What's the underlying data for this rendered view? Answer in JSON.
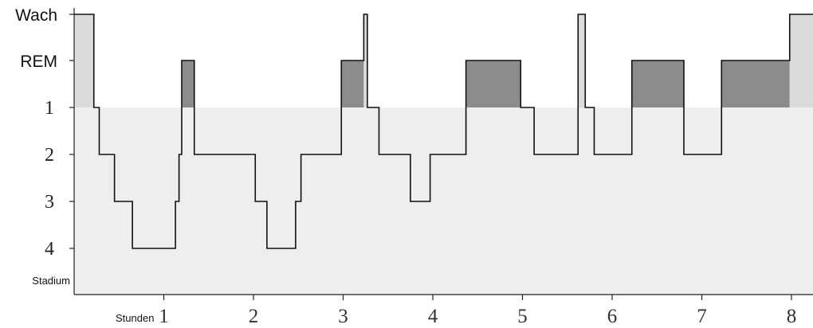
{
  "chart_data": {
    "type": "line",
    "xlabel": "Stunden",
    "ylabel": "Stadium",
    "x_ticks": [
      "1",
      "2",
      "3",
      "4",
      "5",
      "6",
      "7",
      "8"
    ],
    "y_categories": [
      "Wach",
      "REM",
      "1",
      "2",
      "3",
      "4"
    ],
    "xlim": [
      0,
      8.2
    ],
    "colors": {
      "line": "#111111",
      "sleep_fill": "#eeeeee",
      "wake_fill": "#dcdcdc",
      "rem_fill": "#8c8c8c"
    },
    "series": [
      {
        "points": [
          {
            "x": 0.0,
            "stage": "Wach"
          },
          {
            "x": 0.22,
            "stage": "1"
          },
          {
            "x": 0.28,
            "stage": "2"
          },
          {
            "x": 0.45,
            "stage": "3"
          },
          {
            "x": 0.65,
            "stage": "4"
          },
          {
            "x": 1.13,
            "stage": "3"
          },
          {
            "x": 1.17,
            "stage": "2"
          },
          {
            "x": 1.2,
            "stage": "REM"
          },
          {
            "x": 1.34,
            "stage": "2"
          },
          {
            "x": 2.02,
            "stage": "3"
          },
          {
            "x": 2.15,
            "stage": "4"
          },
          {
            "x": 2.47,
            "stage": "3"
          },
          {
            "x": 2.53,
            "stage": "2"
          },
          {
            "x": 2.98,
            "stage": "REM"
          },
          {
            "x": 3.23,
            "stage": "Wach"
          },
          {
            "x": 3.27,
            "stage": "1"
          },
          {
            "x": 3.4,
            "stage": "2"
          },
          {
            "x": 3.75,
            "stage": "3"
          },
          {
            "x": 3.97,
            "stage": "2"
          },
          {
            "x": 4.37,
            "stage": "REM"
          },
          {
            "x": 4.98,
            "stage": "1"
          },
          {
            "x": 5.13,
            "stage": "2"
          },
          {
            "x": 5.62,
            "stage": "Wach"
          },
          {
            "x": 5.7,
            "stage": "1"
          },
          {
            "x": 5.8,
            "stage": "2"
          },
          {
            "x": 6.22,
            "stage": "REM"
          },
          {
            "x": 6.8,
            "stage": "2"
          },
          {
            "x": 7.22,
            "stage": "REM"
          },
          {
            "x": 7.98,
            "stage": "Wach"
          },
          {
            "x": 8.2,
            "stage": "Wach"
          }
        ]
      }
    ]
  }
}
